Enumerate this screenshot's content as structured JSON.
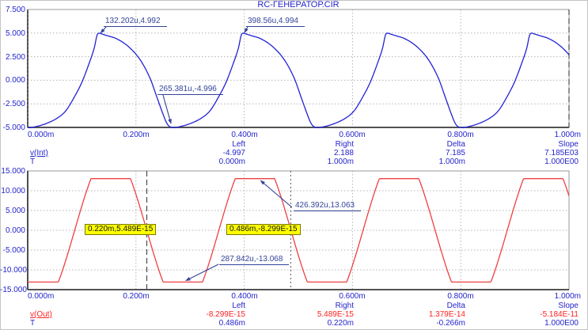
{
  "title": "RC-ГЕНЕРАТОР.CIR",
  "colors": {
    "axis_text": "#2424cc",
    "red_text": "#ff2222",
    "annotation": "#334499",
    "grid": "#b4b4b4",
    "cursor_box_bg": "#ffff00",
    "trace_vint": "#2222d4",
    "trace_vout": "#ee4040"
  },
  "chart_data": [
    {
      "type": "line",
      "series": "v(Int)",
      "color": "#2222d4",
      "xlabel": "T",
      "x_ticks_us": [
        0,
        200,
        400,
        600,
        800,
        1000
      ],
      "x_tick_labels": [
        "0.000m",
        "0.200m",
        "0.400m",
        "0.600m",
        "0.800m",
        "1.000m"
      ],
      "y_ticks": [
        7.5,
        5.0,
        2.5,
        0.0,
        -2.5,
        -5.0
      ],
      "y_tick_labels": [
        "7.500",
        "5.000",
        "2.500",
        "0.000",
        "-2.500",
        "-5.000"
      ],
      "ylim": [
        -5.0,
        7.5
      ],
      "xlim_us": [
        0,
        1000
      ],
      "grid": true,
      "waveform": {
        "kind": "cycle_samples",
        "period_us": 266.36,
        "trough_time_us": -1.0,
        "peak_value": 4.992,
        "trough_value": -4.996,
        "cycle": [
          [
            0.0,
            -5.0
          ],
          [
            0.05,
            -4.95
          ],
          [
            0.13,
            -4.6
          ],
          [
            0.21,
            -4.0
          ],
          [
            0.27,
            -3.2
          ],
          [
            0.33,
            -1.7
          ],
          [
            0.38,
            -0.2
          ],
          [
            0.43,
            1.8
          ],
          [
            0.465,
            3.4
          ],
          [
            0.485,
            4.8
          ],
          [
            0.5,
            4.99
          ],
          [
            0.515,
            4.92
          ],
          [
            0.55,
            4.75
          ],
          [
            0.62,
            4.4
          ],
          [
            0.7,
            3.6
          ],
          [
            0.78,
            2.25
          ],
          [
            0.85,
            0.3
          ],
          [
            0.9,
            -1.8
          ],
          [
            0.94,
            -3.5
          ],
          [
            0.97,
            -4.6
          ],
          [
            1.0,
            -5.0
          ]
        ]
      },
      "annotations": [
        {
          "label": "132.202u,4.992",
          "t_us": 132.202,
          "v": 4.992,
          "arrow": {
            "from": [
              134,
              34
            ],
            "to": [
              126.5,
              42.5
            ]
          }
        },
        {
          "label": "398.56u,4.994",
          "t_us": 398.56,
          "v": 4.994,
          "arrow": {
            "from": [
              313,
              34
            ],
            "to": [
              308.5,
              42
            ]
          }
        },
        {
          "label": "265.381u,-4.996",
          "t_us": 265.381,
          "v": -4.996,
          "arrow": {
            "from": [
              206,
              120
            ],
            "to": [
              216.3,
              157
            ]
          }
        }
      ],
      "cursors": [
        {
          "name": "left",
          "t_us": 0,
          "style": "dotted"
        },
        {
          "name": "right",
          "t_us": 1000,
          "style": "dashed"
        }
      ],
      "readout": {
        "headers": [
          "Left",
          "Right",
          "Delta",
          "Slope"
        ],
        "rows": [
          {
            "name": "v(Int)",
            "values": [
              "-4.997",
              "2.188",
              "7.185",
              "7.185E03"
            ]
          },
          {
            "name": "T",
            "values": [
              "0.000m",
              "1.000m",
              "1.000m",
              "1.000E00"
            ]
          }
        ]
      }
    },
    {
      "type": "line",
      "series": "v(Out)",
      "color": "#ee4040",
      "xlabel": "T",
      "x_ticks_us": [
        0,
        200,
        400,
        600,
        800,
        1000
      ],
      "x_tick_labels": [
        "0.000m",
        "0.200m",
        "0.400m",
        "0.600m",
        "0.800m",
        "1.000m"
      ],
      "y_ticks": [
        15.0,
        10.0,
        5.0,
        0.0,
        -5.0,
        -10.0,
        -15.0
      ],
      "y_tick_labels": [
        "15.000",
        "10.000",
        "5.000",
        "0.000",
        "-5.000",
        "-10.000",
        "-15.000"
      ],
      "ylim": [
        -15.0,
        15.0
      ],
      "xlim_us": [
        0,
        1000
      ],
      "grid": true,
      "waveform": {
        "kind": "clipped_sine",
        "amplitude": 20,
        "period_us": 266.36,
        "rising_zero_us": 86.8,
        "clip_pos": 13.063,
        "clip_neg": -13.068
      },
      "annotations": [
        {
          "label": "426.392u,13.063",
          "t_us": 426.392,
          "v": 13.063,
          "arrow": {
            "from": [
              369,
              262
            ],
            "to": [
              328.5,
              227.5
            ]
          }
        },
        {
          "label": "287.842u,-13.068",
          "t_us": 287.842,
          "v": -13.068,
          "arrow": {
            "from": [
              276,
              334
            ],
            "to": [
              234,
              355
            ]
          }
        }
      ],
      "cursors": [
        {
          "name": "left",
          "t_us": 486,
          "style": "dotted",
          "marker_v": 0
        },
        {
          "name": "right",
          "t_us": 220,
          "style": "dashed",
          "marker_v": 0
        }
      ],
      "cursor_boxes": [
        {
          "label": "0.220m,5.489E-15",
          "t_us": 220,
          "value": "5.489E-15"
        },
        {
          "label": "0.486m,-8.299E-15",
          "t_us": 486,
          "value": "-8.299E-15"
        }
      ],
      "readout": {
        "headers": [
          "Left",
          "Right",
          "Delta",
          "Slope"
        ],
        "rows": [
          {
            "name": "v(Out)",
            "values": [
              "-8.299E-15",
              "5.489E-15",
              "1.379E-14",
              "-5.184E-11"
            ]
          },
          {
            "name": "T",
            "values": [
              "0.486m",
              "0.220m",
              "-0.266m",
              "1.000E00"
            ]
          }
        ]
      }
    }
  ]
}
